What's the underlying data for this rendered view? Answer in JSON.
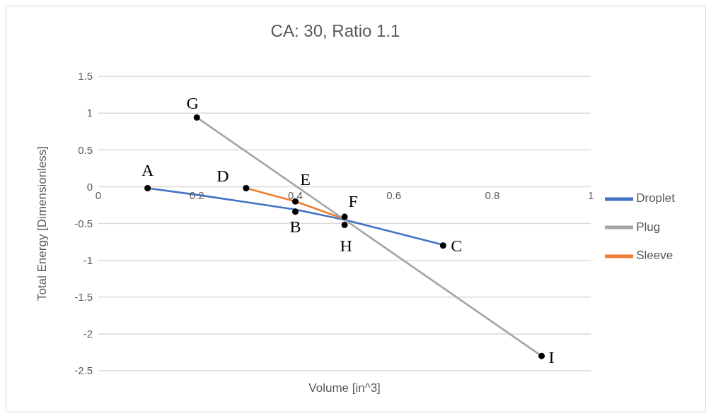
{
  "chart_data": {
    "type": "line",
    "title": "CA: 30, Ratio 1.1",
    "xlabel": "Volume [in^3]",
    "ylabel": "Total Energy [Dimensionless]",
    "xlim": [
      0,
      1
    ],
    "xticks": [
      0,
      0.2,
      0.4,
      0.6,
      0.8,
      1
    ],
    "ylim": [
      -2.5,
      1.5
    ],
    "yticks": [
      -2.5,
      -2,
      -1.5,
      -1,
      -0.5,
      0,
      0.5,
      1,
      1.5
    ],
    "grid": "y",
    "legend": "right",
    "marker": "none",
    "line_style": "solid",
    "series": [
      {
        "name": "Droplet",
        "color": "#4472c4",
        "x": [
          0.1,
          0.2,
          0.3,
          0.4,
          0.5,
          0.6,
          0.7
        ],
        "values": [
          -0.02,
          -0.11,
          -0.21,
          -0.31,
          -0.45,
          -0.62,
          -0.79
        ]
      },
      {
        "name": "Sleeve",
        "color": "#ed7d31",
        "x": [
          0.3,
          0.4,
          0.5
        ],
        "values": [
          -0.02,
          -0.2,
          -0.44
        ]
      },
      {
        "name": "Plug",
        "color": "#a5a5a5",
        "x": [
          0.2,
          0.9
        ],
        "values": [
          0.94,
          -2.3
        ]
      },
      {
        "type": "scatter",
        "color": "#000000",
        "marker": "circle",
        "x": [
          0.1,
          0.3,
          0.4,
          0.4,
          0.5,
          0.5,
          0.7,
          0.2,
          0.9
        ],
        "values": [
          -0.02,
          -0.02,
          -0.2,
          -0.34,
          -0.41,
          -0.52,
          -0.8,
          0.94,
          -2.3
        ]
      }
    ],
    "annotations": [
      {
        "text": "A",
        "x": 0.1,
        "y": -0.02
      },
      {
        "text": "D",
        "x": 0.3,
        "y": -0.02
      },
      {
        "text": "E",
        "x": 0.4,
        "y": -0.2
      },
      {
        "text": "B",
        "x": 0.4,
        "y": -0.34
      },
      {
        "text": "F",
        "x": 0.5,
        "y": -0.41
      },
      {
        "text": "H",
        "x": 0.5,
        "y": -0.52
      },
      {
        "text": "C",
        "x": 0.7,
        "y": -0.8
      },
      {
        "text": "G",
        "x": 0.2,
        "y": 0.94
      },
      {
        "text": "I",
        "x": 0.9,
        "y": -2.3
      }
    ]
  }
}
